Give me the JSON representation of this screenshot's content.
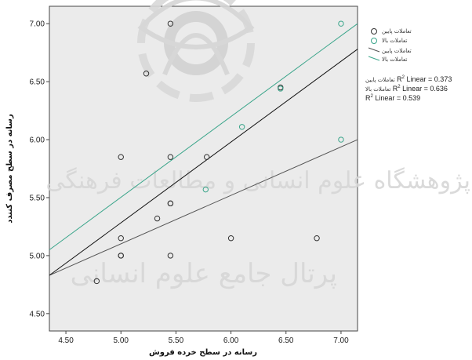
{
  "chart_data": {
    "type": "scatter",
    "xlabel": "رسانه در سطح خرده فروش",
    "ylabel": "رسانه در سطح مصرف کنندد",
    "xlim": [
      4.35,
      7.15
    ],
    "ylim": [
      4.35,
      7.15
    ],
    "x_ticks": [
      "4.50",
      "5.00",
      "5.50",
      "6.00",
      "6.50",
      "7.00"
    ],
    "y_ticks": [
      "4.50",
      "5.00",
      "5.50",
      "6.00",
      "6.50",
      "7.00"
    ],
    "grid": false,
    "legend_position": "top-right",
    "series": [
      {
        "name": "تعاملات پایین",
        "color": "#333333",
        "points": [
          [
            4.78,
            4.78
          ],
          [
            5.0,
            5.0
          ],
          [
            5.0,
            5.0
          ],
          [
            5.0,
            5.85
          ],
          [
            5.0,
            5.15
          ],
          [
            5.23,
            6.57
          ],
          [
            5.33,
            5.32
          ],
          [
            5.45,
            5.45
          ],
          [
            5.45,
            5.45
          ],
          [
            5.45,
            5.0
          ],
          [
            5.45,
            5.85
          ],
          [
            5.45,
            7.0
          ],
          [
            5.78,
            5.85
          ],
          [
            6.0,
            5.15
          ],
          [
            6.45,
            6.45
          ],
          [
            6.78,
            5.15
          ]
        ]
      },
      {
        "name": "تعاملات بالا",
        "color": "#3aa58a",
        "points": [
          [
            5.77,
            5.57
          ],
          [
            6.1,
            6.11
          ],
          [
            6.45,
            6.44
          ],
          [
            7.0,
            7.0
          ],
          [
            7.0,
            6.0
          ]
        ]
      }
    ],
    "fit_lines": [
      {
        "name": "تعاملات پایین",
        "color": "#555555",
        "x": [
          4.35,
          7.15
        ],
        "y": [
          4.83,
          6.0
        ]
      },
      {
        "name": "تعاملات بالا",
        "color": "#3aa58a",
        "x": [
          4.35,
          7.15
        ],
        "y": [
          5.05,
          7.0
        ]
      },
      {
        "name": "",
        "color": "#111111",
        "x": [
          4.35,
          7.15
        ],
        "y": [
          4.83,
          6.78
        ]
      }
    ],
    "legend": [
      {
        "label": "تعاملات پایین",
        "marker": "circle",
        "color": "#333333"
      },
      {
        "label": "تعاملات بالا",
        "marker": "circle",
        "color": "#3aa58a"
      },
      {
        "label": "تعاملات پایین",
        "marker": "line",
        "color": "#555555"
      },
      {
        "label": "تعاملات بالا",
        "marker": "line",
        "color": "#3aa58a"
      }
    ],
    "r2_annotations": [
      {
        "prefix": "تعاملات پایین",
        "text": "Linear = 0.373"
      },
      {
        "prefix": "تعاملات بالا",
        "text": "Linear = 0.636"
      },
      {
        "prefix": "",
        "text": "Linear = 0.539"
      }
    ],
    "watermark": [
      "پژوهشگاه علوم انسانی و مطالعات فرهنگی",
      "پرتال جامع علوم انسانی"
    ]
  }
}
